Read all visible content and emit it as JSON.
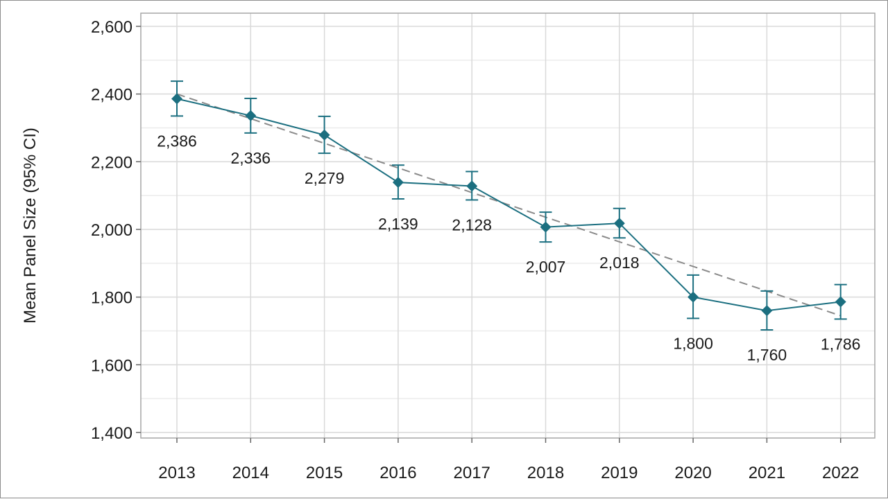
{
  "chart_data": {
    "type": "line",
    "title": "",
    "xlabel": "",
    "ylabel": "Mean Panel Size (95% CI)",
    "ylim": [
      1400,
      2600
    ],
    "yticks": [
      1400,
      1600,
      1800,
      2000,
      2200,
      2400,
      2600
    ],
    "ytick_labels": [
      "1,400",
      "1,600",
      "1,800",
      "2,000",
      "2,200",
      "2,400",
      "2,600"
    ],
    "categories": [
      "2013",
      "2014",
      "2015",
      "2016",
      "2017",
      "2018",
      "2019",
      "2020",
      "2021",
      "2022"
    ],
    "series": [
      {
        "values": [
          2386,
          2336,
          2279,
          2139,
          2128,
          2007,
          2018,
          1800,
          1760,
          1786
        ],
        "ci_lower": [
          2335,
          2285,
          2225,
          2090,
          2087,
          1963,
          1975,
          1737,
          1703,
          1735
        ],
        "ci_upper": [
          2438,
          2387,
          2334,
          2190,
          2171,
          2051,
          2062,
          1865,
          1818,
          1837
        ],
        "value_labels": [
          "2,386",
          "2,336",
          "2,279",
          "2,139",
          "2,128",
          "2,007",
          "2,018",
          "1,800",
          "1,760",
          "1,786"
        ],
        "color": "#1b6f80",
        "marker": "diamond"
      }
    ],
    "trendline": {
      "style": "dashed",
      "color": "#8a8a8a",
      "start": 2400,
      "end": 1745
    },
    "grid": true,
    "legend": "none"
  }
}
